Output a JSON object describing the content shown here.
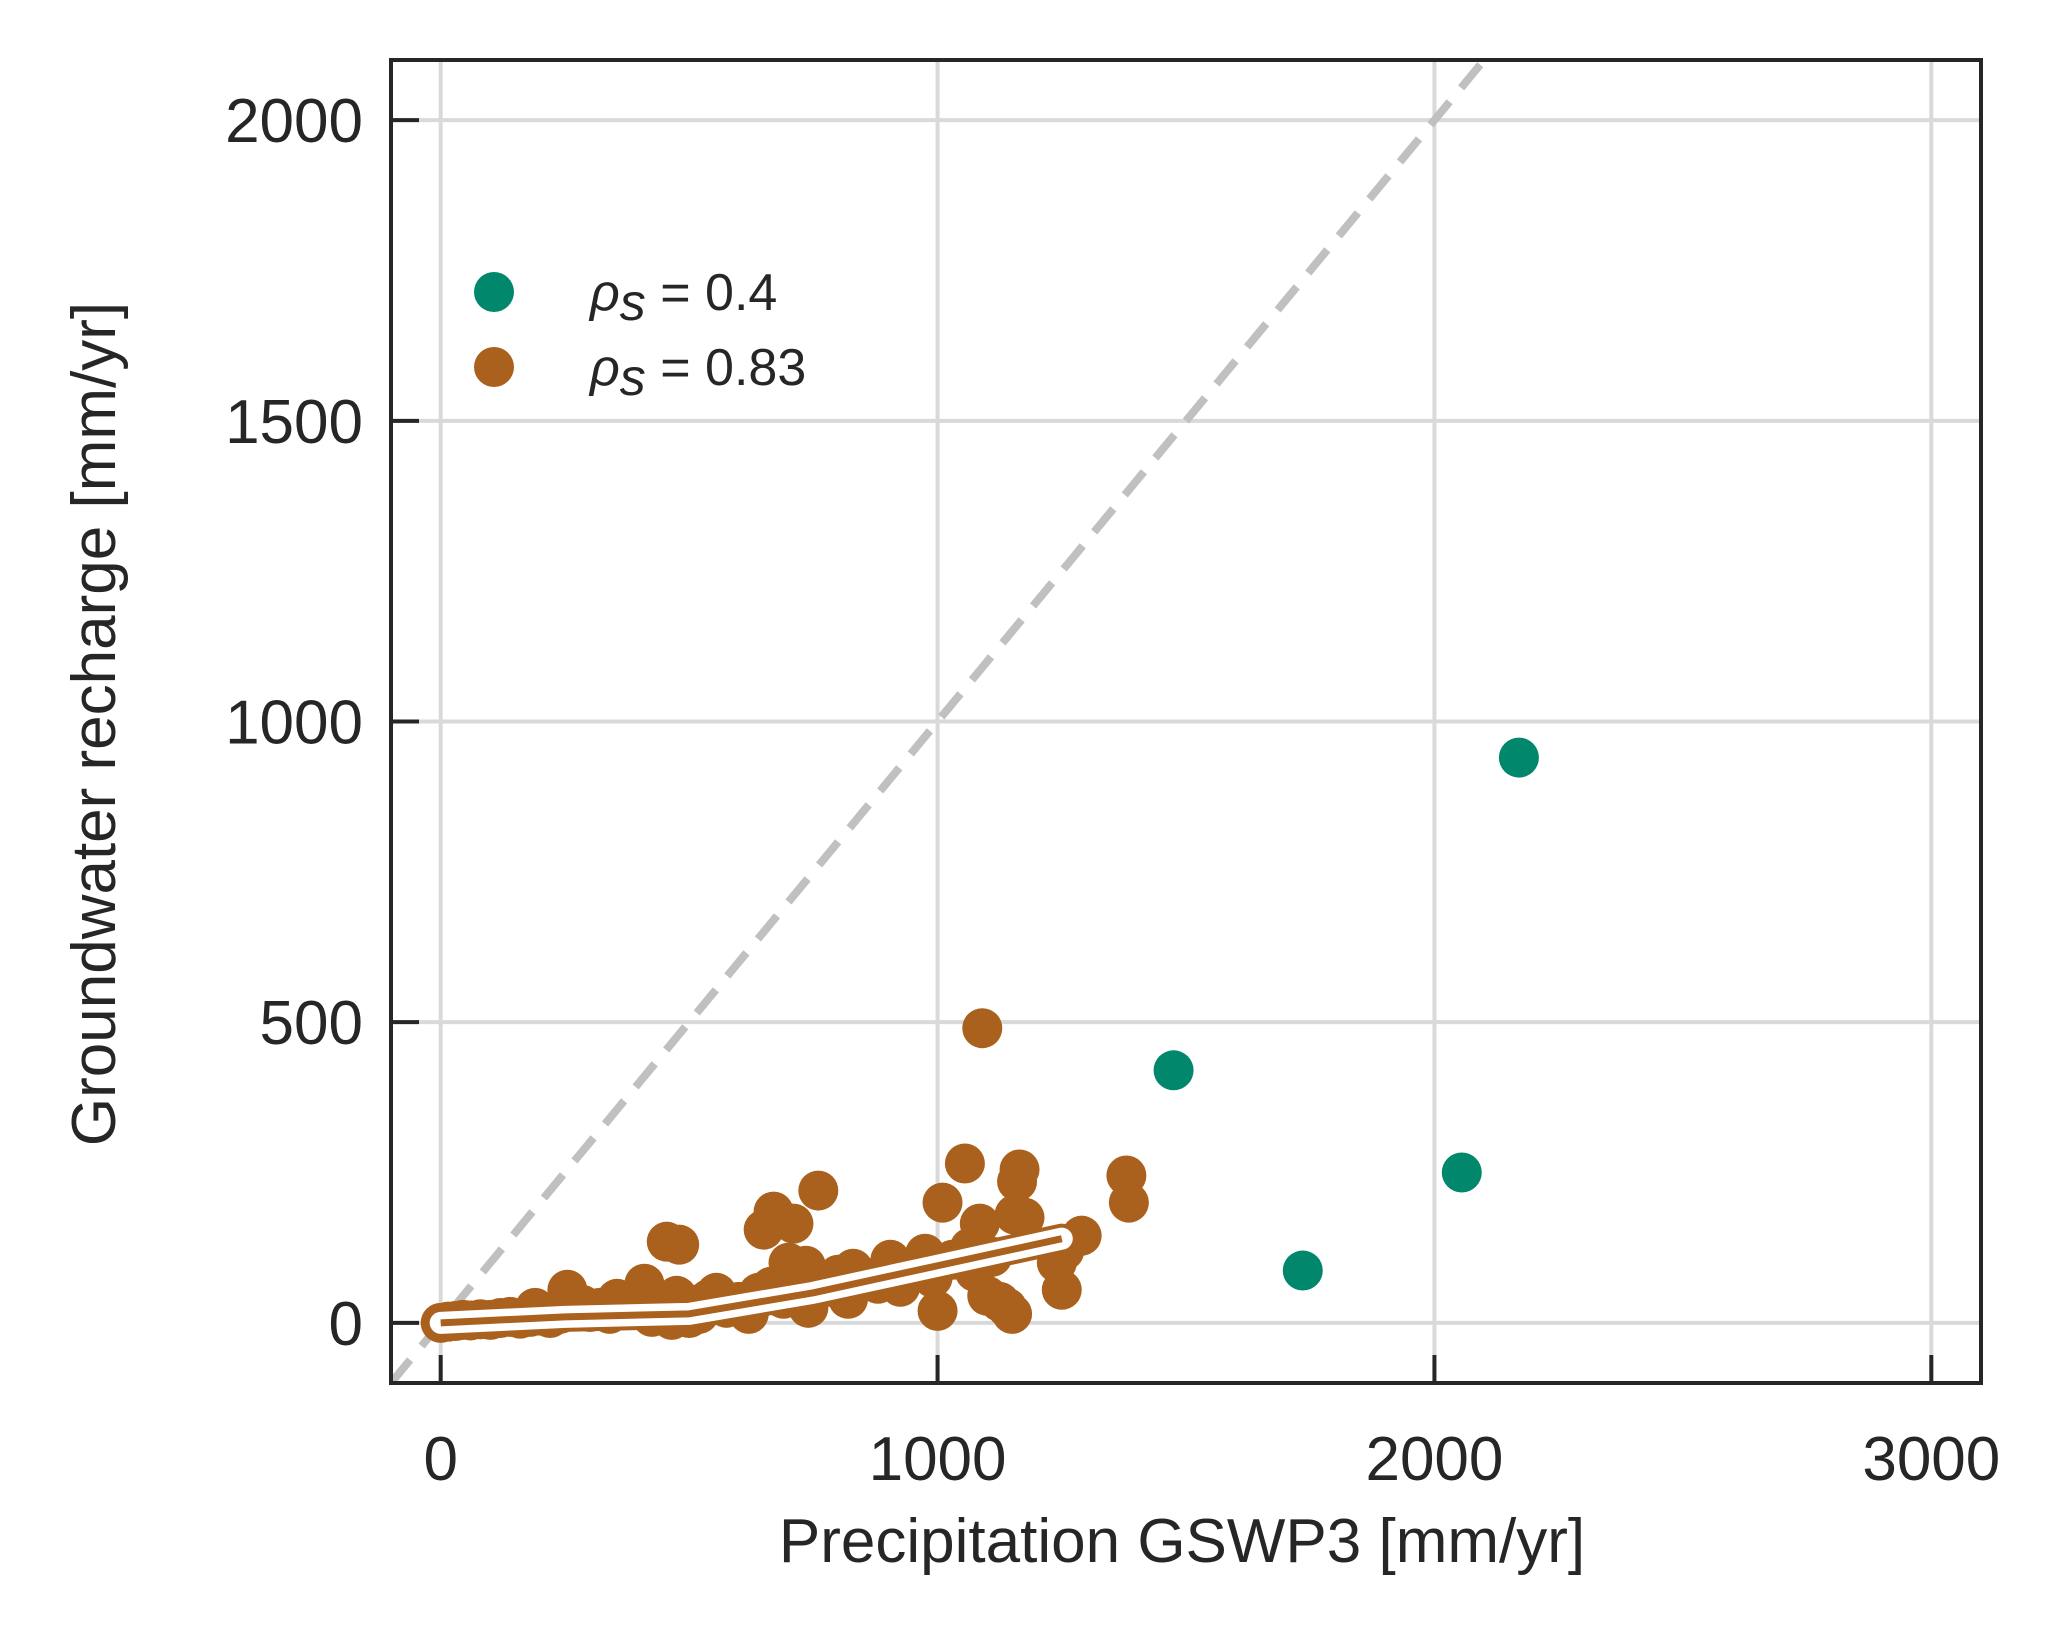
{
  "chart_data": {
    "type": "scatter",
    "xlabel": "Precipitation GSWP3 [mm/yr]",
    "ylabel": "Groundwater recharge [mm/yr]",
    "xlim": [
      -100,
      3100
    ],
    "ylim": [
      -100,
      2100
    ],
    "x_ticks": [
      0,
      1000,
      2000,
      3000
    ],
    "y_ticks": [
      0,
      500,
      1000,
      1500,
      2000
    ],
    "x_tick_labels": [
      "0",
      "1000",
      "2000",
      "3000"
    ],
    "y_tick_labels": [
      "0",
      "500",
      "1000",
      "1500",
      "2000"
    ],
    "grid": true,
    "legend_position": "upper-left",
    "reference_line": {
      "style": "dashed",
      "color": "#c0c0c0",
      "slope": 1
    },
    "series": [
      {
        "name_symbol": "ρ",
        "name_subscript": "s",
        "name_rest": " = 0.4",
        "color": "#00876c",
        "points": [
          [
            1475,
            420
          ],
          [
            1735,
            87
          ],
          [
            2055,
            250
          ],
          [
            2170,
            940
          ]
        ]
      },
      {
        "name_symbol": "ρ",
        "name_subscript": "s",
        "name_rest": " = 0.83",
        "color": "#a9611d",
        "points": [
          [
            0,
            0
          ],
          [
            15,
            2
          ],
          [
            30,
            3
          ],
          [
            45,
            5
          ],
          [
            60,
            4
          ],
          [
            80,
            6
          ],
          [
            100,
            5
          ],
          [
            120,
            8
          ],
          [
            140,
            10
          ],
          [
            160,
            7
          ],
          [
            180,
            10
          ],
          [
            190,
            25
          ],
          [
            200,
            12
          ],
          [
            220,
            8
          ],
          [
            240,
            15
          ],
          [
            255,
            55
          ],
          [
            270,
            20
          ],
          [
            285,
            30
          ],
          [
            300,
            18
          ],
          [
            320,
            25
          ],
          [
            340,
            15
          ],
          [
            355,
            40
          ],
          [
            370,
            22
          ],
          [
            385,
            30
          ],
          [
            400,
            25
          ],
          [
            410,
            65
          ],
          [
            425,
            10
          ],
          [
            440,
            35
          ],
          [
            455,
            135
          ],
          [
            465,
            5
          ],
          [
            475,
            45
          ],
          [
            480,
            130
          ],
          [
            500,
            8
          ],
          [
            510,
            30
          ],
          [
            520,
            15
          ],
          [
            540,
            40
          ],
          [
            555,
            50
          ],
          [
            575,
            25
          ],
          [
            600,
            35
          ],
          [
            620,
            15
          ],
          [
            640,
            50
          ],
          [
            650,
            155
          ],
          [
            665,
            60
          ],
          [
            670,
            185
          ],
          [
            690,
            40
          ],
          [
            700,
            100
          ],
          [
            710,
            165
          ],
          [
            720,
            70
          ],
          [
            735,
            95
          ],
          [
            740,
            25
          ],
          [
            760,
            220
          ],
          [
            780,
            60
          ],
          [
            800,
            80
          ],
          [
            820,
            40
          ],
          [
            830,
            90
          ],
          [
            855,
            75
          ],
          [
            880,
            65
          ],
          [
            905,
            105
          ],
          [
            925,
            60
          ],
          [
            950,
            90
          ],
          [
            975,
            115
          ],
          [
            990,
            75
          ],
          [
            1000,
            20
          ],
          [
            1010,
            200
          ],
          [
            1030,
            105
          ],
          [
            1055,
            265
          ],
          [
            1065,
            125
          ],
          [
            1075,
            85
          ],
          [
            1085,
            165
          ],
          [
            1090,
            490
          ],
          [
            1100,
            45
          ],
          [
            1110,
            110
          ],
          [
            1125,
            35
          ],
          [
            1140,
            25
          ],
          [
            1150,
            15
          ],
          [
            1155,
            180
          ],
          [
            1160,
            235
          ],
          [
            1165,
            255
          ],
          [
            1175,
            175
          ],
          [
            1240,
            100
          ],
          [
            1250,
            55
          ],
          [
            1255,
            120
          ],
          [
            1290,
            145
          ],
          [
            1380,
            245
          ],
          [
            1385,
            200
          ]
        ]
      }
    ],
    "trend_line": {
      "color": "#a9611d",
      "points": [
        [
          0,
          0
        ],
        [
          250,
          10
        ],
        [
          500,
          15
        ],
        [
          750,
          50
        ],
        [
          1000,
          95
        ],
        [
          1250,
          140
        ]
      ]
    }
  }
}
